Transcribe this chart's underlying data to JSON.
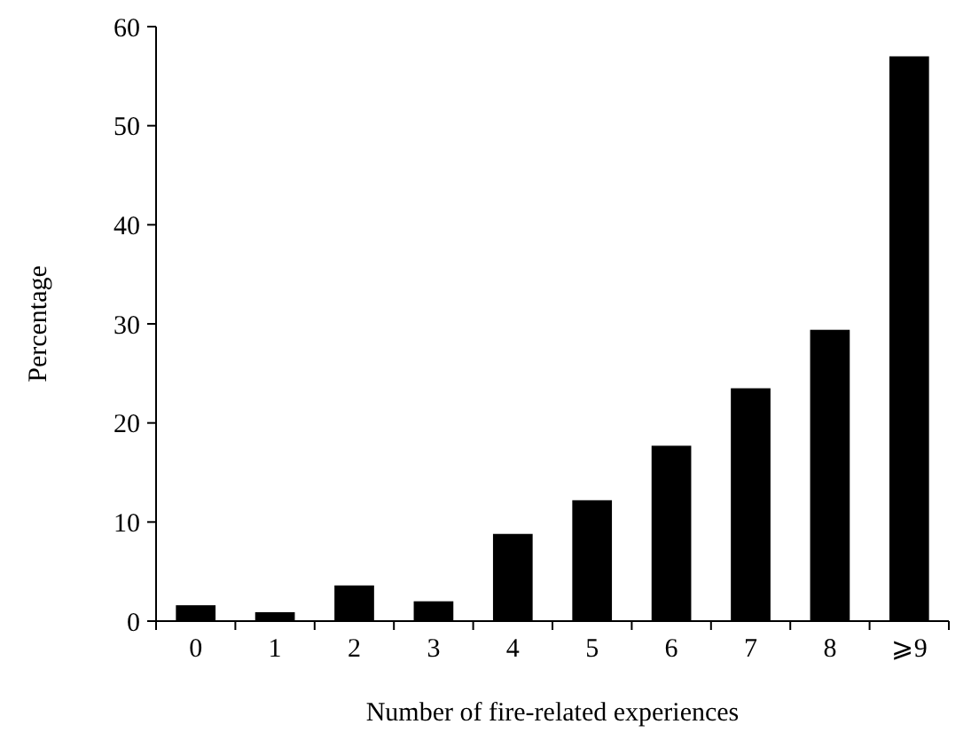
{
  "chart_data": {
    "type": "bar",
    "xlabel": "Number of fire-related experiences",
    "ylabel": "Percentage",
    "categories": [
      "0",
      "1",
      "2",
      "3",
      "4",
      "5",
      "6",
      "7",
      "8",
      "⩾9"
    ],
    "values": [
      1.6,
      0.9,
      3.6,
      2.0,
      8.8,
      12.2,
      17.7,
      23.5,
      29.4,
      57.0
    ],
    "color": "#000000",
    "ylim": [
      0,
      60
    ],
    "yticks": [
      0,
      10,
      20,
      30,
      40,
      50,
      60
    ],
    "grid": false
  }
}
